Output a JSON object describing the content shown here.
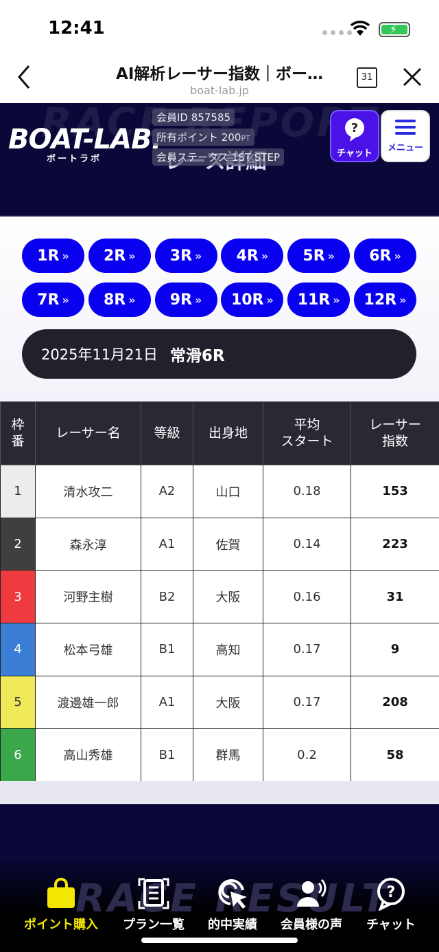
{
  "status_bar": {
    "time": "12:41"
  },
  "browser": {
    "title": "AI解析レーサー指数｜ボー…",
    "url": "boat-lab.jp",
    "calendar_label": "31"
  },
  "header": {
    "bg_text": "RACE REPORT",
    "sub_title": "レース詳細",
    "logo": "BOAT-LAB.",
    "logo_sub": "ボートラボ",
    "member_id_label": "会員ID",
    "member_id": "857585",
    "points_label": "所有ポイント",
    "points": "200",
    "points_unit": "PT",
    "status_label": "会員ステータス",
    "status": "1ST STEP",
    "chat_label": "チャット",
    "menu_label": "メニュー"
  },
  "races": [
    "1R",
    "2R",
    "3R",
    "4R",
    "5R",
    "6R",
    "7R",
    "8R",
    "9R",
    "10R",
    "11R",
    "12R"
  ],
  "race_info": {
    "date": "2025年11月21日",
    "race_name": "常滑6R"
  },
  "table": {
    "headers": [
      "枠番",
      "レーサー名",
      "等級",
      "出身地",
      "平均スタート",
      "レーサー指数"
    ],
    "header_lines": {
      "frame": [
        "枠",
        "番"
      ],
      "avg_start": [
        "平均",
        "スタート"
      ],
      "index": [
        "レーサー",
        "指数"
      ]
    },
    "rows": [
      {
        "frame": "1",
        "name": "清水攻二",
        "grade": "A2",
        "origin": "山口",
        "avg_start": "0.18",
        "index": "153",
        "color": "#ececec"
      },
      {
        "frame": "2",
        "name": "森永淳",
        "grade": "A1",
        "origin": "佐賀",
        "avg_start": "0.14",
        "index": "223",
        "color": "#3f3f3f"
      },
      {
        "frame": "3",
        "name": "河野主樹",
        "grade": "B2",
        "origin": "大阪",
        "avg_start": "0.16",
        "index": "31",
        "color": "#ef3b40"
      },
      {
        "frame": "4",
        "name": "松本弓雄",
        "grade": "B1",
        "origin": "高知",
        "avg_start": "0.17",
        "index": "9",
        "color": "#3a7fd5"
      },
      {
        "frame": "5",
        "name": "渡邊雄一郎",
        "grade": "A1",
        "origin": "大阪",
        "avg_start": "0.17",
        "index": "208",
        "color": "#f0ea5a"
      },
      {
        "frame": "6",
        "name": "高山秀雄",
        "grade": "B1",
        "origin": "群馬",
        "avg_start": "0.2",
        "index": "58",
        "color": "#3aa84a"
      }
    ]
  },
  "bottom_nav": {
    "bg_text": "RACE RESULT",
    "items": [
      {
        "label": "ポイント購入",
        "icon": "shopping-bag-icon",
        "active": true
      },
      {
        "label": "プラン一覧",
        "icon": "document-list-icon",
        "active": false
      },
      {
        "label": "的中実績",
        "icon": "target-click-icon",
        "active": false
      },
      {
        "label": "会員様の声",
        "icon": "member-voice-icon",
        "active": false
      },
      {
        "label": "チャット",
        "icon": "chat-help-icon",
        "active": false
      }
    ]
  },
  "colors": {
    "race_button": "#0a00f0",
    "header_bg": "#0a0838",
    "active_nav": "#f3e600",
    "chat_button": "#4a12e6"
  }
}
